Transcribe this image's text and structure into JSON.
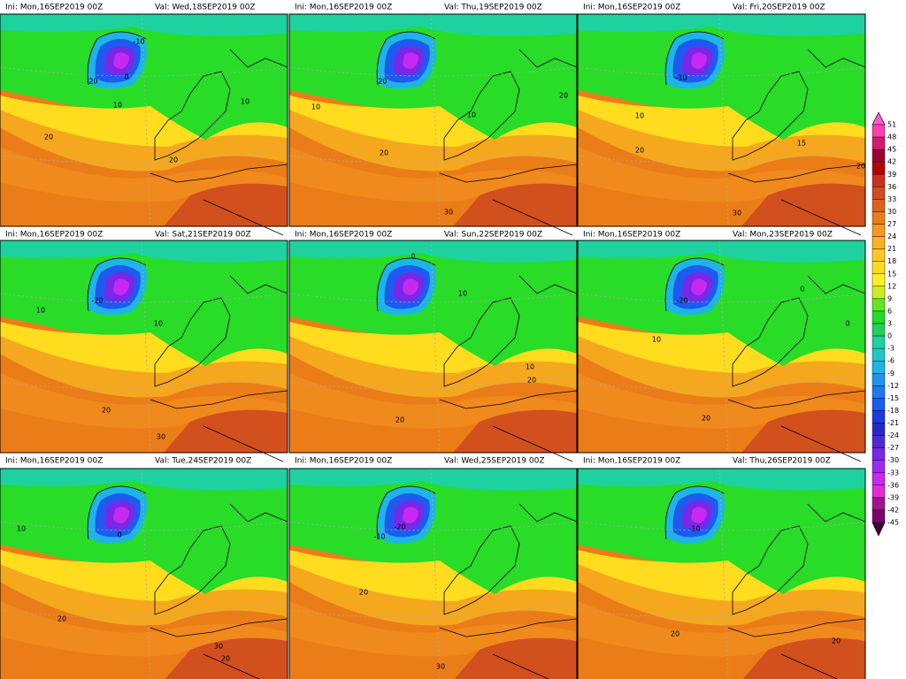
{
  "panels": [
    {
      "ini": "Ini: Mon,16SEP2019 00Z",
      "val": "Val: Wed,18SEP2019 00Z",
      "contour_labels": [
        "-10",
        "-20",
        "0",
        "10",
        "20",
        "20",
        "10"
      ]
    },
    {
      "ini": "Ini: Mon,16SEP2019 00Z",
      "val": "Val: Thu,19SEP2019 00Z",
      "contour_labels": [
        "-20",
        "10",
        "10",
        "20",
        "30",
        "20"
      ]
    },
    {
      "ini": "Ini: Mon,16SEP2019 00Z",
      "val": "Val: Fri,20SEP2019 00Z",
      "contour_labels": [
        "-10",
        "10",
        "20",
        "15",
        "30",
        "20"
      ]
    },
    {
      "ini": "Ini: Mon,16SEP2019 00Z",
      "val": "Val: Sat,21SEP2019 00Z",
      "contour_labels": [
        "-20",
        "10",
        "10",
        "20",
        "30"
      ]
    },
    {
      "ini": "Ini: Mon,16SEP2019 00Z",
      "val": "Val: Sun,22SEP2019 00Z",
      "contour_labels": [
        "0",
        "10",
        "20",
        "10",
        "20"
      ]
    },
    {
      "ini": "Ini: Mon,16SEP2019 00Z",
      "val": "Val: Mon,23SEP2019 00Z",
      "contour_labels": [
        "-20",
        "0",
        "10",
        "20",
        "0"
      ]
    },
    {
      "ini": "Ini: Mon,16SEP2019 00Z",
      "val": "Val: Tue,24SEP2019 00Z",
      "contour_labels": [
        "0",
        "10",
        "20",
        "30",
        "20"
      ]
    },
    {
      "ini": "Ini: Mon,16SEP2019 00Z",
      "val": "Val: Wed,25SEP2019 00Z",
      "contour_labels": [
        "-20",
        "-10",
        "20",
        "30"
      ]
    },
    {
      "ini": "Ini: Mon,16SEP2019 00Z",
      "val": "Val: Thu,26SEP2019 00Z",
      "contour_labels": [
        "-10",
        "20",
        "20"
      ]
    }
  ],
  "colorbar": {
    "levels": [
      51,
      48,
      45,
      42,
      39,
      36,
      33,
      30,
      27,
      24,
      21,
      18,
      15,
      12,
      9,
      6,
      3,
      0,
      -3,
      -6,
      -9,
      -12,
      -15,
      -18,
      -21,
      -24,
      -27,
      -30,
      -33,
      -36,
      -39,
      -42,
      -45
    ],
    "over_color": "#ff5ad2",
    "under_color": "#3c0032",
    "colors": [
      "#ff3fb0",
      "#d41a6e",
      "#a0002a",
      "#b40000",
      "#c8321e",
      "#d24b1e",
      "#e06020",
      "#eb7d19",
      "#f59a1e",
      "#fab41e",
      "#ffc81e",
      "#ffdc1e",
      "#fff01e",
      "#c8f01e",
      "#64e61e",
      "#1edc28",
      "#1ed25a",
      "#1ed2a0",
      "#1ec8c8",
      "#1eb4e6",
      "#1e96f0",
      "#1e78f0",
      "#1e5af0",
      "#1e3cdc",
      "#2828c8",
      "#5028d2",
      "#7828e6",
      "#a028f0",
      "#c828f0",
      "#e628dc",
      "#a0148c",
      "#78006e"
    ]
  }
}
